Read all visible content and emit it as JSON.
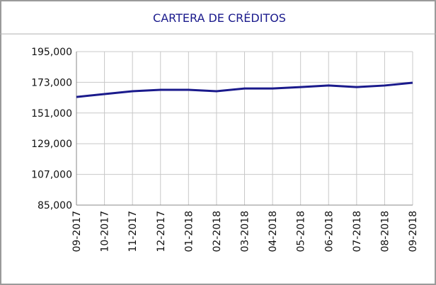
{
  "chart_data": {
    "type": "line",
    "title": "CARTERA DE CRÉDITOS",
    "categories": [
      "09-2017",
      "10-2017",
      "11-2017",
      "12-2017",
      "01-2018",
      "02-2018",
      "03-2018",
      "04-2018",
      "05-2018",
      "06-2018",
      "07-2018",
      "08-2018",
      "09-2018"
    ],
    "series": [
      {
        "name": "Cartera de créditos",
        "color": "#1a1a8c",
        "values": [
          162500,
          164600,
          166600,
          167600,
          167600,
          166600,
          168600,
          168600,
          169600,
          170700,
          169600,
          170700,
          172700
        ]
      }
    ],
    "ylim": [
      85000,
      195000
    ],
    "yticks": [
      {
        "value": 85000,
        "label": "85,000"
      },
      {
        "value": 107000,
        "label": "107,000"
      },
      {
        "value": 129000,
        "label": "129,000"
      },
      {
        "value": 151000,
        "label": "151,000"
      },
      {
        "value": 173000,
        "label": "173,000"
      },
      {
        "value": 195000,
        "label": "195,000"
      }
    ],
    "grid": true
  }
}
